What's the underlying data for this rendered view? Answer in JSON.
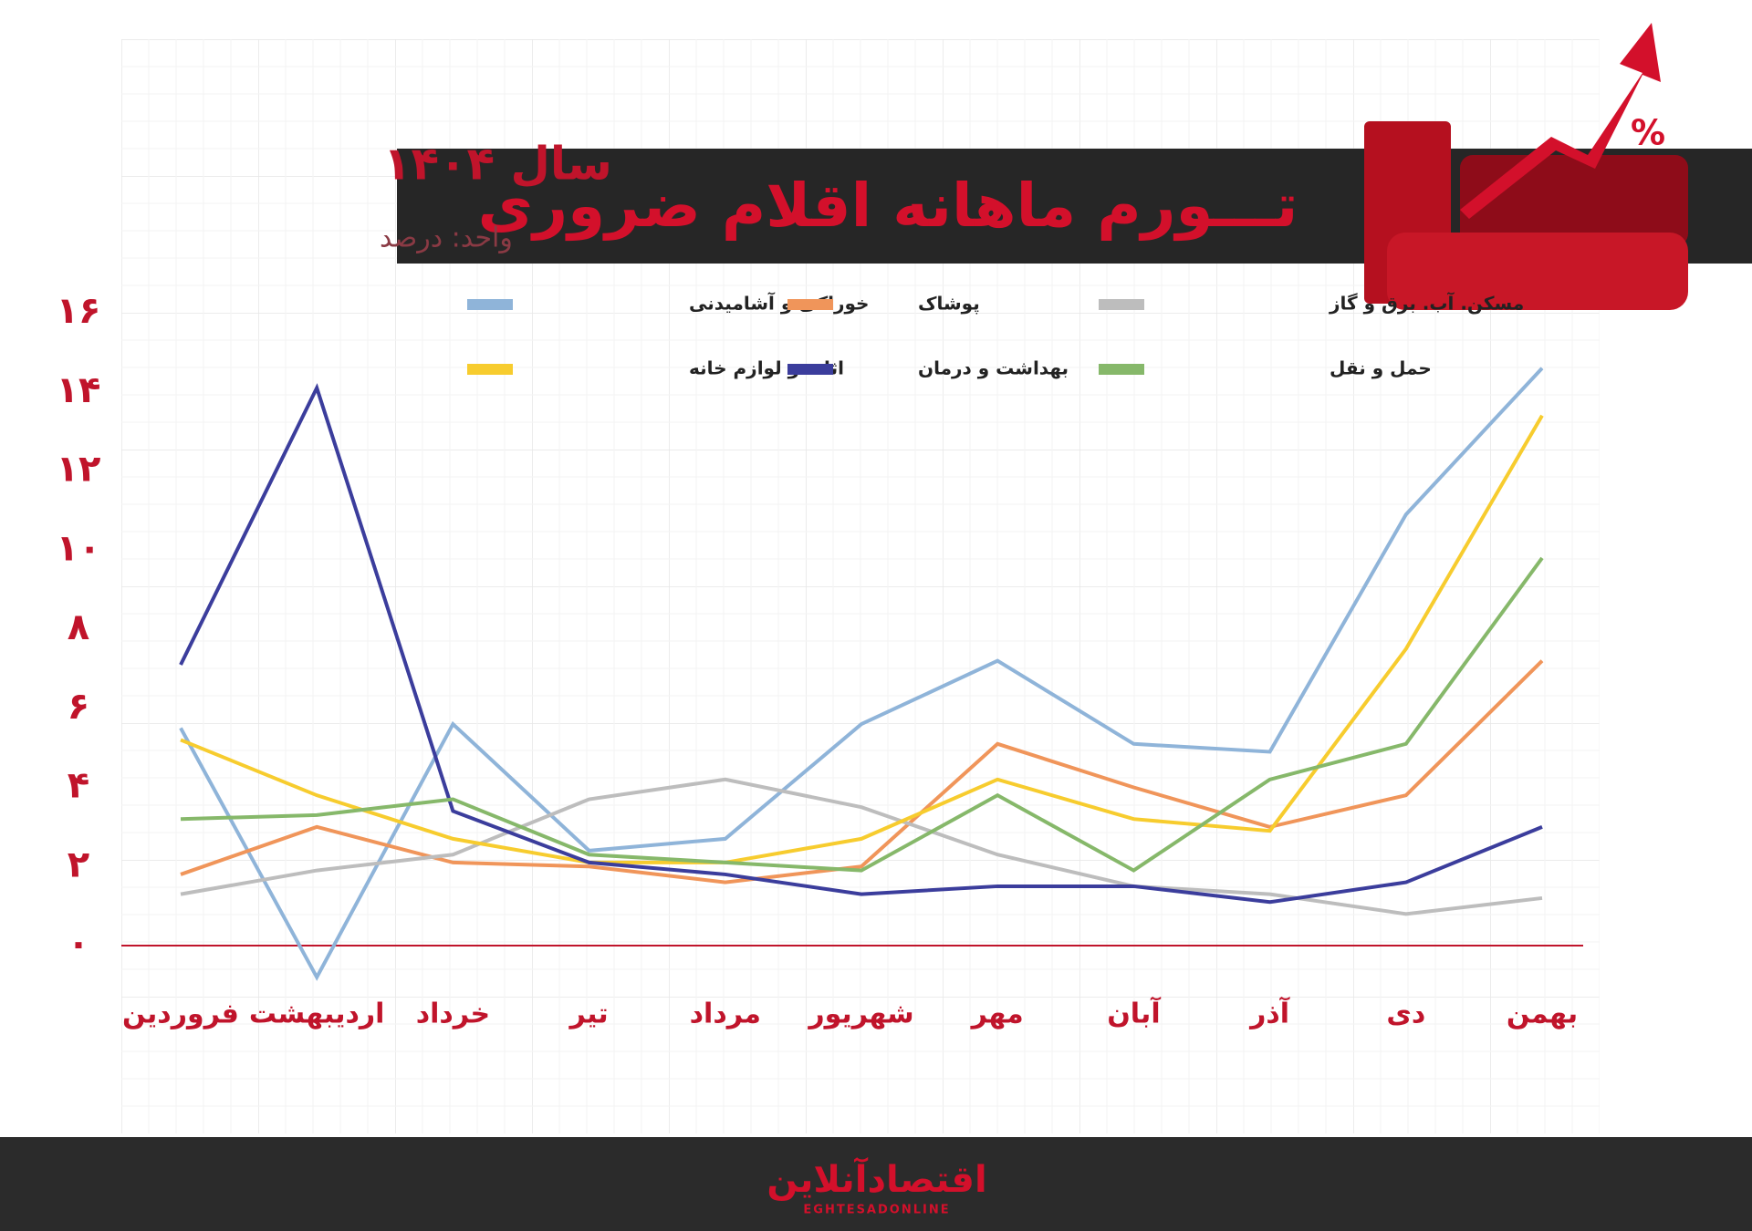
{
  "chart_data": {
    "type": "line",
    "title": "تـــورم ماهانه اقلام ضروری",
    "subtitle": "سال ۱۴۰۴",
    "y_label": "واحد: درصد",
    "categories": [
      "فروردین",
      "اردیبهشت",
      "خرداد",
      "تیر",
      "مرداد",
      "شهریور",
      "مهر",
      "آبان",
      "آذر",
      "دی",
      "بهمن"
    ],
    "series": [
      {
        "name": "خوراکی و آشامیدنی",
        "color": "#8fb4d9",
        "values": [
          5.5,
          -0.8,
          5.6,
          2.4,
          2.7,
          5.6,
          7.2,
          5.1,
          4.9,
          10.9,
          14.6
        ]
      },
      {
        "name": "پوشاک",
        "color": "#f0955a",
        "values": [
          1.8,
          3.0,
          2.1,
          2.0,
          1.6,
          2.0,
          5.1,
          4.0,
          3.0,
          3.8,
          7.2
        ]
      },
      {
        "name": "مسکن. آب. برق و گاز",
        "color": "#bdbdbd",
        "values": [
          1.3,
          1.9,
          2.3,
          3.7,
          4.2,
          3.5,
          2.3,
          1.5,
          1.3,
          0.8,
          1.2
        ]
      },
      {
        "name": "اثاث و لوازم خانه",
        "color": "#f7cc2e",
        "values": [
          5.2,
          3.8,
          2.7,
          2.1,
          2.1,
          2.7,
          4.2,
          3.2,
          2.9,
          7.5,
          13.4
        ]
      },
      {
        "name": "بهداشت و درمان",
        "color": "#3b3d9c",
        "values": [
          7.1,
          14.1,
          3.4,
          2.1,
          1.8,
          1.3,
          1.5,
          1.5,
          1.1,
          1.6,
          3.0
        ]
      },
      {
        "name": "حمل و نقل",
        "color": "#86b86a",
        "values": [
          3.2,
          3.3,
          3.7,
          2.3,
          2.1,
          1.9,
          3.8,
          1.9,
          4.2,
          5.1,
          9.8
        ]
      }
    ],
    "ylim": [
      0,
      16
    ],
    "yticks": [
      {
        "value": 0,
        "label": "۰"
      },
      {
        "value": 2,
        "label": "۲"
      },
      {
        "value": 4,
        "label": "۴"
      },
      {
        "value": 6,
        "label": "۶"
      },
      {
        "value": 8,
        "label": "۸"
      },
      {
        "value": 10,
        "label": "۱۰"
      },
      {
        "value": 12,
        "label": "۱۲"
      },
      {
        "value": 14,
        "label": "۱۴"
      },
      {
        "value": 16,
        "label": "۱۶"
      }
    ],
    "zero_line_color": "#c0142b"
  },
  "footer": {
    "logo": "اقتصادآنلاین",
    "logo_latin": "EGHTESADONLINE"
  }
}
